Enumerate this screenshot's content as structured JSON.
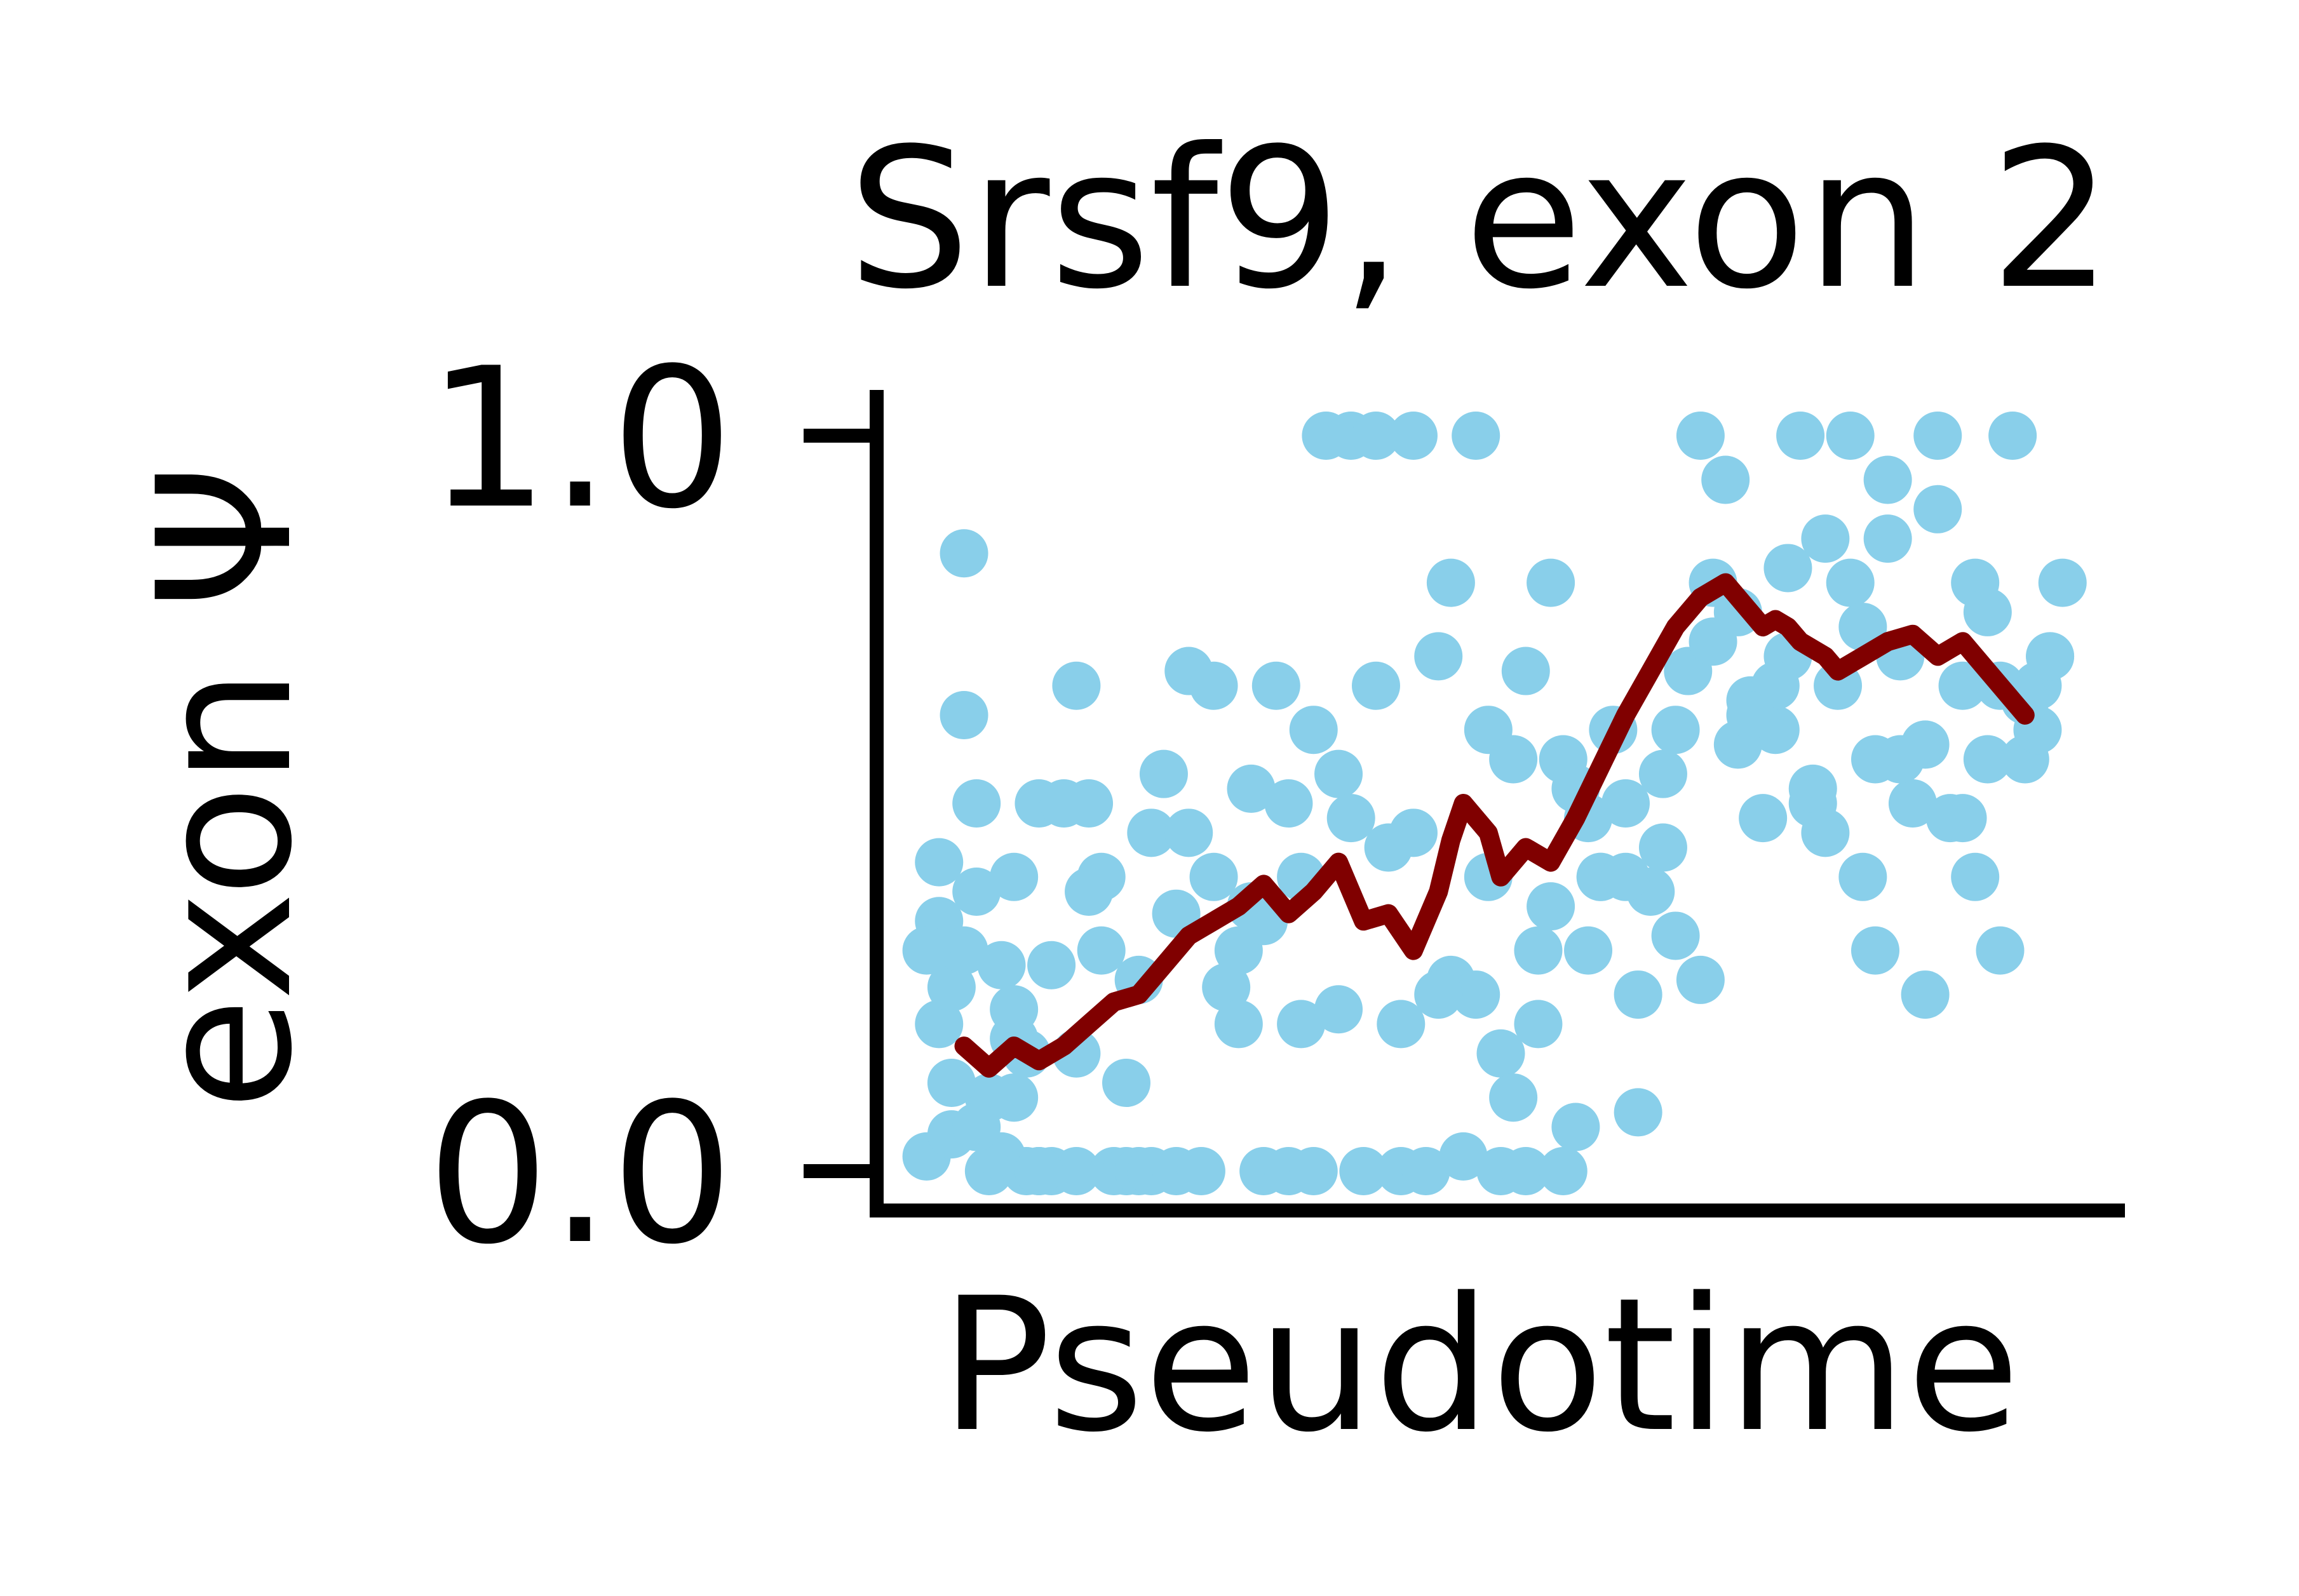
{
  "chart_data": {
    "type": "scatter",
    "title": "Srsf9, exon 2",
    "xlabel": "Pseudotime",
    "ylabel": "exon Ψ",
    "ylim": [
      0.0,
      1.0
    ],
    "xlim": [
      0.0,
      1.0
    ],
    "yticks": [
      {
        "value": 0.0,
        "label": "0.0"
      },
      {
        "value": 1.0,
        "label": "1.0"
      }
    ],
    "grid": false,
    "legend": "none",
    "colors": {
      "points": "#89CFEA",
      "trend": "#800000",
      "axes": "#000000"
    },
    "series": [
      {
        "kind": "points",
        "x": [
          0.04,
          0.05,
          0.05,
          0.06,
          0.06,
          0.07,
          0.07,
          0.08,
          0.08,
          0.09,
          0.1,
          0.1,
          0.11,
          0.11,
          0.11,
          0.12,
          0.13,
          0.13,
          0.14,
          0.15,
          0.16,
          0.16,
          0.17,
          0.18,
          0.19,
          0.2,
          0.21,
          0.22,
          0.22,
          0.23,
          0.24,
          0.25,
          0.26,
          0.27,
          0.28,
          0.29,
          0.3,
          0.31,
          0.32,
          0.33,
          0.34,
          0.35,
          0.35,
          0.36,
          0.37,
          0.38,
          0.39,
          0.4,
          0.41,
          0.42,
          0.43,
          0.44,
          0.45,
          0.46,
          0.47,
          0.48,
          0.49,
          0.5,
          0.51,
          0.52,
          0.52,
          0.53,
          0.54,
          0.55,
          0.55,
          0.56,
          0.57,
          0.58,
          0.59,
          0.6,
          0.61,
          0.62,
          0.63,
          0.64,
          0.65,
          0.66,
          0.67,
          0.68,
          0.69,
          0.7,
          0.71,
          0.72,
          0.73,
          0.74,
          0.75,
          0.76,
          0.77,
          0.78,
          0.79,
          0.8,
          0.8,
          0.81,
          0.82,
          0.83,
          0.84,
          0.85,
          0.86,
          0.87,
          0.88,
          0.88,
          0.89,
          0.9,
          0.91,
          0.92,
          0.93,
          0.94,
          0.95,
          0.05,
          0.07,
          0.09,
          0.12,
          0.14,
          0.16,
          0.18,
          0.2,
          0.24,
          0.27,
          0.3,
          0.33,
          0.37,
          0.4,
          0.43,
          0.46,
          0.48,
          0.5,
          0.53,
          0.56,
          0.58,
          0.61,
          0.64,
          0.66,
          0.69,
          0.72,
          0.75,
          0.78,
          0.81,
          0.84,
          0.87,
          0.9,
          0.93,
          0.04,
          0.06,
          0.08,
          0.11,
          0.13,
          0.17,
          0.21,
          0.25,
          0.29,
          0.31,
          0.34,
          0.38,
          0.42,
          0.45,
          0.49,
          0.51,
          0.54,
          0.57,
          0.6,
          0.63,
          0.67,
          0.7,
          0.73,
          0.76,
          0.79,
          0.82,
          0.85,
          0.89,
          0.92,
          0.94
        ],
        "y": [
          0.02,
          0.2,
          0.42,
          0.25,
          0.05,
          0.84,
          0.62,
          0.38,
          0.5,
          0.0,
          0.28,
          0.02,
          0.18,
          0.4,
          0.1,
          0.0,
          0.5,
          0.0,
          0.0,
          0.5,
          0.66,
          0.0,
          0.5,
          0.3,
          0.0,
          0.0,
          0.0,
          0.46,
          0.0,
          0.54,
          0.0,
          0.68,
          0.0,
          0.66,
          0.25,
          0.3,
          0.52,
          0.0,
          0.66,
          0.0,
          0.2,
          0.6,
          0.0,
          1.0,
          0.54,
          1.0,
          0.0,
          1.0,
          0.44,
          0.0,
          1.0,
          0.0,
          0.7,
          0.8,
          0.02,
          1.0,
          0.6,
          0.0,
          0.56,
          0.68,
          0.0,
          0.2,
          0.8,
          0.56,
          0.0,
          0.52,
          0.48,
          0.4,
          0.6,
          0.5,
          0.08,
          0.38,
          0.54,
          0.6,
          0.68,
          1.0,
          0.8,
          0.94,
          0.76,
          0.64,
          0.48,
          0.6,
          0.7,
          1.0,
          0.5,
          0.86,
          0.66,
          1.0,
          0.4,
          0.3,
          0.56,
          0.94,
          0.7,
          0.5,
          0.24,
          1.0,
          0.48,
          0.66,
          0.8,
          0.4,
          0.56,
          0.3,
          1.0,
          0.56,
          0.66,
          0.7,
          0.8,
          0.34,
          0.3,
          0.1,
          0.16,
          0.28,
          0.16,
          0.4,
          0.12,
          0.35,
          0.4,
          0.36,
          0.5,
          0.22,
          0.66,
          0.46,
          0.26,
          0.24,
          0.16,
          0.3,
          0.06,
          0.4,
          0.24,
          0.32,
          0.26,
          0.58,
          0.66,
          0.52,
          0.8,
          0.86,
          0.58,
          0.48,
          0.66,
          0.6,
          0.3,
          0.12,
          0.06,
          0.22,
          0.0,
          0.38,
          0.26,
          0.46,
          0.2,
          0.34,
          0.4,
          0.48,
          0.2,
          0.24,
          0.4,
          0.1,
          0.36,
          0.3,
          0.4,
          0.44,
          0.72,
          0.62,
          0.82,
          0.46,
          0.74,
          0.56,
          0.9,
          0.76,
          0.64,
          0.7
        ]
      },
      {
        "kind": "trend",
        "x": [
          0.07,
          0.09,
          0.11,
          0.13,
          0.15,
          0.17,
          0.19,
          0.21,
          0.23,
          0.25,
          0.27,
          0.29,
          0.31,
          0.33,
          0.35,
          0.37,
          0.39,
          0.41,
          0.43,
          0.45,
          0.46,
          0.47,
          0.49,
          0.5,
          0.52,
          0.54,
          0.55,
          0.56,
          0.58,
          0.6,
          0.62,
          0.64,
          0.66,
          0.68,
          0.7,
          0.71,
          0.72,
          0.73,
          0.74,
          0.76,
          0.77,
          0.79,
          0.81,
          0.83,
          0.85,
          0.87,
          0.89,
          0.9,
          0.91,
          0.92
        ],
        "y": [
          0.17,
          0.14,
          0.17,
          0.15,
          0.17,
          0.2,
          0.23,
          0.24,
          0.28,
          0.32,
          0.34,
          0.36,
          0.39,
          0.35,
          0.38,
          0.42,
          0.34,
          0.35,
          0.3,
          0.38,
          0.45,
          0.5,
          0.46,
          0.4,
          0.44,
          0.42,
          0.45,
          0.48,
          0.55,
          0.62,
          0.68,
          0.74,
          0.78,
          0.8,
          0.76,
          0.74,
          0.75,
          0.74,
          0.72,
          0.7,
          0.68,
          0.7,
          0.72,
          0.73,
          0.7,
          0.72,
          0.68,
          0.66,
          0.64,
          0.62
        ]
      }
    ]
  }
}
